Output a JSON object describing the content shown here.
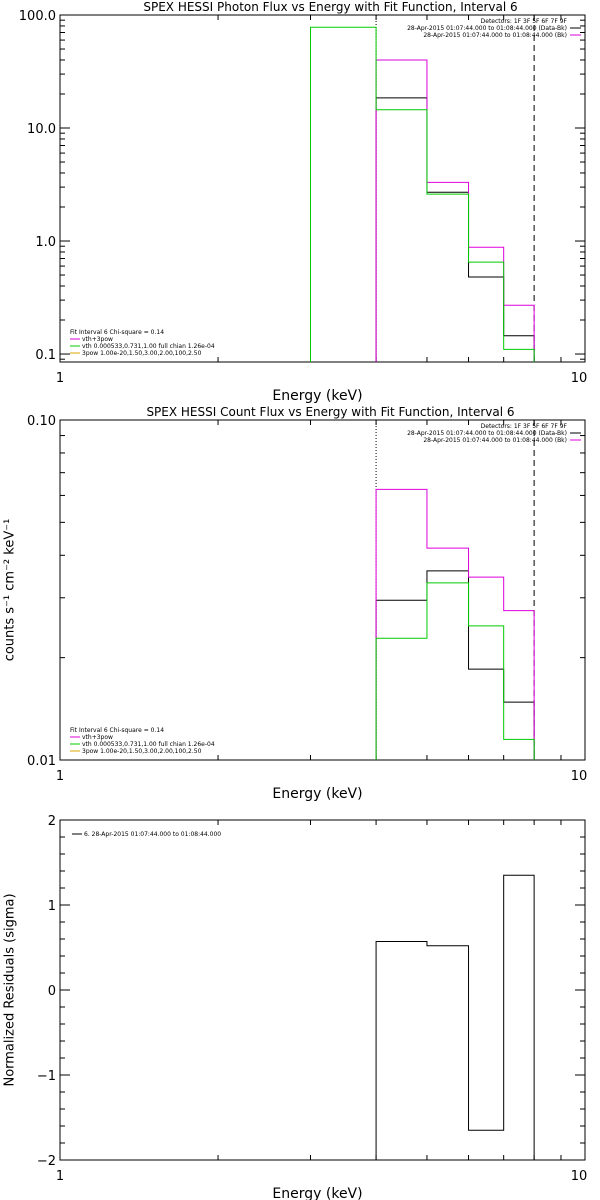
{
  "chart_data": [
    {
      "type": "line",
      "title": "SPEX HESSI Photon Flux vs Energy with Fit Function, Interval 6",
      "xlabel": "Energy (keV)",
      "ylabel": "",
      "xscale": "log",
      "yscale": "log",
      "xlim": [
        1,
        10
      ],
      "ylim": [
        0.085,
        100
      ],
      "xticks": [
        "1",
        "10"
      ],
      "yticks": [
        {
          "v": 100,
          "label": "100.0"
        },
        {
          "v": 10,
          "label": "10.0"
        },
        {
          "v": 1,
          "label": "1.0"
        },
        {
          "v": 0.1,
          "label": "0.1"
        }
      ],
      "bin_edges": [
        3.0,
        4.0,
        5.0,
        6.0,
        7.0,
        8.0
      ],
      "vlines": [
        {
          "x": 4.0,
          "style": "dotted"
        },
        {
          "x": 8.0,
          "style": "dashed"
        }
      ],
      "header_right": [
        "Detectors: 1F 3F 5F 6F 7F 9F",
        "28-Apr-2015 01:07:44.000 to 01:08:44.000 (Data-Bk)",
        "28-Apr-2015 01:07:44.000 to 01:08:44.000 (Bk)"
      ],
      "legend_left": [
        "Fit Interval 6   Chi-square = 0.14",
        "vth+3pow",
        "vth 0.000533,0.731,1.00  full chian 1.26e-04",
        "3pow 1.00e-20,1.50,3.00,2.00,100,2.50"
      ],
      "series": [
        {
          "key": "data",
          "color": "#000000",
          "values": [
            null,
            18.5,
            2.7,
            0.48,
            0.145
          ]
        },
        {
          "key": "bk",
          "color": "#dd00dd",
          "values": [
            null,
            40,
            3.3,
            0.88,
            0.27
          ]
        },
        {
          "key": "fit",
          "color": "#00cc00",
          "values": [
            78,
            14.5,
            2.6,
            0.65,
            0.11
          ]
        }
      ]
    },
    {
      "type": "line",
      "title": "SPEX HESSI Count Flux vs Energy with Fit Function, Interval 6",
      "xlabel": "Energy (keV)",
      "ylabel": "counts s⁻¹ cm⁻² keV⁻¹",
      "xscale": "log",
      "yscale": "log",
      "xlim": [
        1,
        10
      ],
      "ylim": [
        0.01,
        0.1
      ],
      "xticks": [
        "1",
        "10"
      ],
      "yticks": [
        {
          "v": 0.1,
          "label": "0.10"
        },
        {
          "v": 0.01,
          "label": "0.01"
        }
      ],
      "bin_edges": [
        4.0,
        5.0,
        6.0,
        7.0,
        8.0
      ],
      "vlines": [
        {
          "x": 4.0,
          "style": "dotted"
        },
        {
          "x": 8.0,
          "style": "dashed"
        }
      ],
      "header_right": [
        "Detectors: 1F 3F 5F 6F 7F 9F",
        "28-Apr-2015 01:07:44.000 to 01:08:44.000 (Data-Bk)",
        "28-Apr-2015 01:07:44.000 to 01:08:44.000 (Bk)"
      ],
      "legend_left": [
        "Fit Interval 6   Chi-square = 0.14",
        "vth+3pow",
        "vth 0.000533,0.731,1.00  full chian 1.26e-04",
        "3pow 1.00e-20,1.50,3.00,2.00,100,2.50"
      ],
      "series": [
        {
          "key": "data",
          "color": "#000000",
          "values": [
            0.0295,
            0.036,
            0.0185,
            0.0148
          ]
        },
        {
          "key": "bk",
          "color": "#dd00dd",
          "values": [
            0.0625,
            0.042,
            0.0345,
            0.0275
          ]
        },
        {
          "key": "fit",
          "color": "#00cc00",
          "values": [
            0.0228,
            0.0332,
            0.0248,
            0.0115
          ]
        }
      ]
    },
    {
      "type": "line",
      "title": "",
      "xlabel": "Energy (keV)",
      "ylabel": "Normalized Residuals (sigma)",
      "xscale": "log",
      "yscale": "linear",
      "xlim": [
        1,
        10
      ],
      "ylim": [
        -2,
        2
      ],
      "xticks": [
        "1",
        "10"
      ],
      "yticks": [
        {
          "v": 2,
          "label": "2"
        },
        {
          "v": 1,
          "label": "1"
        },
        {
          "v": 0,
          "label": "0"
        },
        {
          "v": -1,
          "label": "−1"
        },
        {
          "v": -2,
          "label": "−2"
        }
      ],
      "bin_edges": [
        4.0,
        5.0,
        6.0,
        7.0,
        8.0
      ],
      "vlines": [],
      "header_right": [],
      "legend_left": [
        "6. 28-Apr-2015 01:07:44.000 to 01:08:44.000"
      ],
      "series": [
        {
          "key": "resid",
          "color": "#000000",
          "values": [
            0.57,
            0.52,
            -1.65,
            1.35
          ],
          "baseline": -2
        }
      ]
    }
  ]
}
